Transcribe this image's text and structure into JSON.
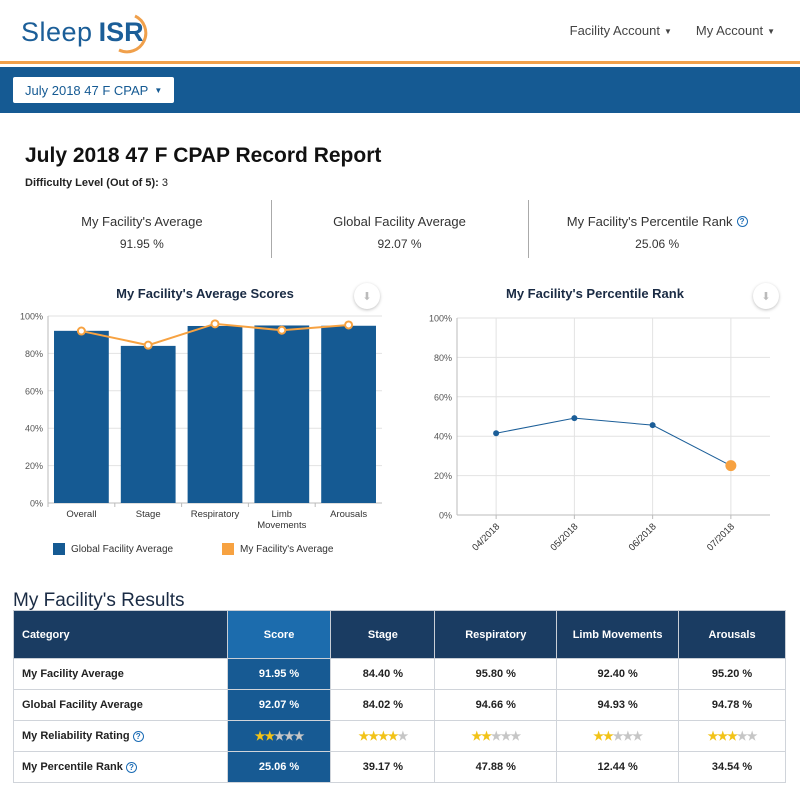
{
  "header": {
    "logo_sleep": "Sleep",
    "logo_isr": "ISR",
    "nav": [
      "Facility Account",
      "My Account"
    ]
  },
  "record_selector": "July 2018 47 F CPAP",
  "page_title": "July 2018 47 F CPAP Record Report",
  "difficulty": {
    "label": "Difficulty Level (Out of 5):",
    "value": "3"
  },
  "stats": [
    {
      "label": "My Facility's Average",
      "value": "91.95 %"
    },
    {
      "label": "Global Facility Average",
      "value": "92.07 %"
    },
    {
      "label": "My Facility's Percentile Rank",
      "value": "25.06 %"
    }
  ],
  "colors": {
    "brand_blue": "#155a93",
    "bar_blue": "#155a93",
    "accent_orange": "#f7a241",
    "line_blue": "#1b5e98"
  },
  "chart_data": [
    {
      "type": "bar",
      "title": "My Facility's Average Scores",
      "categories": [
        "Overall",
        "Stage",
        "Respiratory",
        "Limb Movements",
        "Arousals"
      ],
      "category_lines": [
        [
          "Overall"
        ],
        [
          "Stage"
        ],
        [
          "Respiratory"
        ],
        [
          "Limb",
          "Movements"
        ],
        [
          "Arousals"
        ]
      ],
      "series": [
        {
          "name": "Global Facility Average",
          "kind": "bar",
          "values": [
            92.07,
            84.02,
            94.66,
            94.93,
            94.78
          ]
        },
        {
          "name": "My Facility's Average",
          "kind": "line",
          "values": [
            91.95,
            84.4,
            95.8,
            92.4,
            95.2
          ]
        }
      ],
      "yticks": [
        "0%",
        "20%",
        "40%",
        "60%",
        "80%",
        "100%"
      ],
      "ylim": [
        0,
        100
      ],
      "legend": "bottom"
    },
    {
      "type": "line",
      "title": "My Facility's Percentile Rank",
      "x": [
        "04/2018",
        "05/2018",
        "06/2018",
        "07/2018"
      ],
      "values": [
        41.5,
        49.2,
        45.6,
        25.06
      ],
      "yticks": [
        "0%",
        "20%",
        "40%",
        "60%",
        "80%",
        "100%"
      ],
      "ylim": [
        0,
        100
      ],
      "grid": true
    }
  ],
  "results": {
    "title": "My Facility's Results",
    "columns": [
      "Category",
      "Score",
      "Stage",
      "Respiratory",
      "Limb Movements",
      "Arousals"
    ],
    "rows": [
      {
        "label": "My Facility Average",
        "cells": [
          "91.95 %",
          "84.40 %",
          "95.80 %",
          "92.40 %",
          "95.20 %"
        ]
      },
      {
        "label": "Global Facility Average",
        "cells": [
          "92.07 %",
          "84.02 %",
          "94.66 %",
          "94.93 %",
          "94.78 %"
        ]
      },
      {
        "label": "My Reliability Rating",
        "stars": [
          2,
          4,
          2,
          2,
          3
        ],
        "help": true
      },
      {
        "label": "My Percentile Rank",
        "cells": [
          "25.06 %",
          "39.17 %",
          "47.88 %",
          "12.44 %",
          "34.54 %"
        ],
        "help": true
      }
    ]
  }
}
